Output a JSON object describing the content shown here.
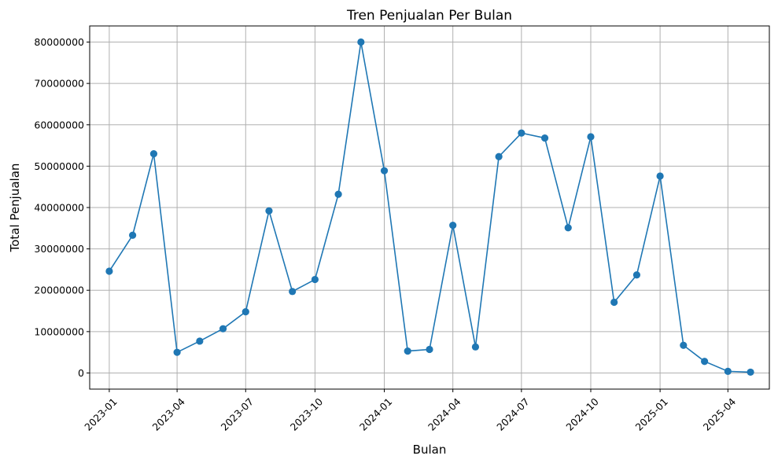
{
  "chart_data": {
    "type": "line",
    "title": "Tren Penjualan Per Bulan",
    "xlabel": "Bulan",
    "ylabel": "Total Penjualan",
    "grid": true,
    "marker": "circle",
    "colors": {
      "series": "#1f77b4",
      "grid": "#b0b0b0"
    },
    "x_tick_labels": [
      "2023-01",
      "2023-04",
      "2023-07",
      "2023-10",
      "2024-01",
      "2024-04",
      "2024-07",
      "2024-10",
      "2025-01",
      "2025-04"
    ],
    "y_tick_labels": [
      "0",
      "10000000",
      "20000000",
      "30000000",
      "40000000",
      "50000000",
      "60000000",
      "70000000",
      "80000000"
    ],
    "ylim": [
      -3900000,
      83900000
    ],
    "xlim": [
      "2022-12-06",
      "2025-05-26"
    ],
    "x": [
      "2023-01-01",
      "2023-02-01",
      "2023-03-01",
      "2023-04-01",
      "2023-05-01",
      "2023-06-01",
      "2023-07-01",
      "2023-08-01",
      "2023-09-01",
      "2023-10-01",
      "2023-11-01",
      "2023-12-01",
      "2024-01-01",
      "2024-02-01",
      "2024-03-01",
      "2024-04-01",
      "2024-05-01",
      "2024-06-01",
      "2024-07-01",
      "2024-08-01",
      "2024-09-01",
      "2024-10-01",
      "2024-11-01",
      "2024-12-01",
      "2025-01-01",
      "2025-02-01",
      "2025-03-01",
      "2025-04-01",
      "2025-05-01"
    ],
    "values": [
      24600000,
      33300000,
      53000000,
      5000000,
      7700000,
      10700000,
      14800000,
      39200000,
      19700000,
      22600000,
      43200000,
      80000000,
      48900000,
      5300000,
      5700000,
      35700000,
      6300000,
      52300000,
      58000000,
      56800000,
      35100000,
      57100000,
      17100000,
      23700000,
      47600000,
      6700000,
      2800000,
      400000,
      200000
    ]
  }
}
